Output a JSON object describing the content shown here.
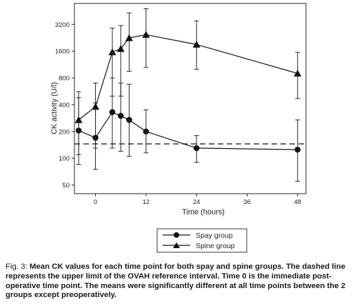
{
  "chart_data": {
    "type": "line",
    "x": [
      -4,
      0,
      4,
      6,
      8,
      12,
      24,
      48
    ],
    "xlabel": "Time (hours)",
    "ylabel": "CK activity (U/l)",
    "xlim": [
      -5,
      50
    ],
    "ylim": [
      40,
      5500
    ],
    "yscale": "log",
    "x_ticks": [
      0,
      12,
      24,
      36,
      48
    ],
    "x_tick_labels": [
      "0",
      "12",
      "24",
      "36",
      "48"
    ],
    "y_ticks": [
      50,
      100,
      200,
      400,
      800,
      1600,
      3200
    ],
    "y_tick_labels": [
      "50",
      "100",
      "200",
      "400",
      "800",
      "1600",
      "3200"
    ],
    "grid": false,
    "legend_position": "bottom-center",
    "reference_line": {
      "y": 145,
      "style": "dashed"
    },
    "series": [
      {
        "name": "Spay group",
        "marker": "circle",
        "values": [
          205,
          170,
          330,
          300,
          270,
          200,
          130,
          125
        ],
        "error_low": [
          85,
          75,
          130,
          120,
          105,
          115,
          90,
          55
        ],
        "error_high": [
          480,
          420,
          800,
          700,
          680,
          350,
          180,
          270
        ]
      },
      {
        "name": "Spine group",
        "marker": "triangle",
        "values": [
          270,
          380,
          1560,
          1700,
          2250,
          2450,
          1900,
          900
        ],
        "error_low": [
          110,
          130,
          500,
          500,
          950,
          1050,
          1000,
          470
        ],
        "error_high": [
          560,
          700,
          2900,
          3100,
          4300,
          4800,
          3500,
          1550
        ]
      }
    ]
  },
  "caption": {
    "lead": "Fig. 3: ",
    "body": "Mean CK values for each time point for both spay and spine groups. The dashed line represents the upper limit of the OVAH reference interval. Time 0 is the immediate post-operative time point. The means were significantly different at all time points between the 2 groups except preoperatively."
  }
}
